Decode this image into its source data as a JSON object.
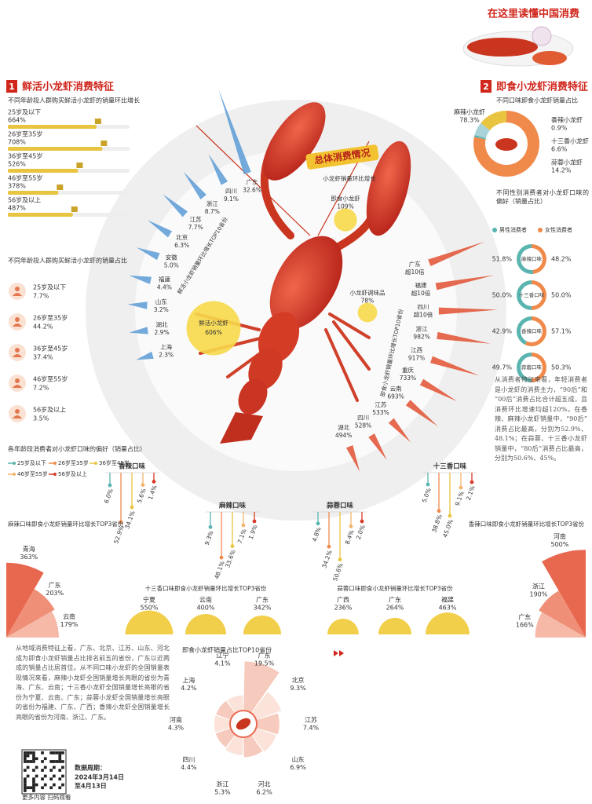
{
  "header": {
    "title": "在这里读懂中国消费"
  },
  "section1": {
    "number": "1",
    "title": "鲜活小龙虾消费特征"
  },
  "section2": {
    "number": "2",
    "title": "即食小龙虾消费特征"
  },
  "age_growth": {
    "title": "不同年龄段人群购买鲜活小龙虾的销量环比增长",
    "categories": [
      "25岁及以下",
      "26岁至35岁",
      "36岁至45岁",
      "46岁至55岁",
      "56岁及以上"
    ],
    "values": [
      664,
      708,
      526,
      378,
      487
    ],
    "value_labels": [
      "664%",
      "708%",
      "526%",
      "378%",
      "487%"
    ]
  },
  "age_share": {
    "title": "不同年龄段人群购买鲜活小龙虾的销量占比",
    "categories": [
      "25岁及以下",
      "26岁至35岁",
      "36岁至45岁",
      "46岁至55岁",
      "56岁及以上"
    ],
    "values": [
      7.7,
      44.2,
      37.4,
      7.2,
      3.5
    ],
    "value_labels": [
      "7.7%",
      "44.2%",
      "37.4%",
      "7.2%",
      "3.5%"
    ]
  },
  "overall": {
    "title": "总体消费情况",
    "subtitle": "小龙虾销量环比增长",
    "categories": [
      "即食小龙虾",
      "鲜活小龙虾",
      "小龙虾调味品"
    ],
    "values": [
      109,
      606,
      78
    ],
    "value_labels": [
      "109%",
      "606%",
      "78%"
    ]
  },
  "fresh_top10": {
    "title": "鲜活小龙虾销量环比增长TOP10省份",
    "categories": [
      "广东",
      "四川",
      "浙江",
      "江苏",
      "北京",
      "安徽",
      "福建",
      "山东",
      "湖北",
      "上海"
    ],
    "values": [
      32.6,
      9.1,
      8.7,
      7.7,
      6.3,
      5.0,
      4.4,
      3.2,
      2.9,
      2.3
    ],
    "value_labels": [
      "32.6%",
      "9.1%",
      "8.7%",
      "7.7%",
      "6.3%",
      "5.0%",
      "4.4%",
      "3.2%",
      "2.9%",
      "2.3%"
    ]
  },
  "instant_top10": {
    "title": "即食小龙虾销量环比增长TOP10省份",
    "categories": [
      "广东",
      "福建",
      "四川",
      "浙江",
      "江西",
      "重庆",
      "云南",
      "江苏",
      "四川",
      "湖北"
    ],
    "values": [
      null,
      null,
      null,
      982,
      917,
      733,
      693,
      533,
      528,
      494
    ],
    "value_labels": [
      "超10倍",
      "超10倍",
      "超10倍",
      "982%",
      "917%",
      "733%",
      "693%",
      "533%",
      "528%",
      "494%"
    ]
  },
  "flavor_age": {
    "title": "各年龄段消费者对小龙虾口味的偏好（销量占比）",
    "series": [
      {
        "name": "25岁及以下",
        "color": "#5ab4b0"
      },
      {
        "name": "26岁至35岁",
        "color": "#f08a4b"
      },
      {
        "name": "36岁至45岁",
        "color": "#e8c440"
      },
      {
        "name": "46岁至55岁",
        "color": "#f2b36b"
      },
      {
        "name": "56岁及以上",
        "color": "#d83a2a"
      }
    ],
    "groups": [
      {
        "name": "香辣口味",
        "values": [
          6.0,
          52.9,
          34.1,
          5.6,
          1.4
        ],
        "value_labels": [
          "6.0%",
          "52.9%",
          "34.1%",
          "5.6%",
          "1.4%"
        ]
      },
      {
        "name": "麻辣口味",
        "values": [
          9.3,
          48.1,
          33.6,
          7.1,
          1.9
        ],
        "value_labels": [
          "9.3%",
          "48.1%",
          "33.6%",
          "7.1%",
          "1.9%"
        ]
      },
      {
        "name": "蒜蓉口味",
        "values": [
          4.8,
          34.2,
          50.6,
          8.4,
          2.0
        ],
        "value_labels": [
          "4.8%",
          "34.2%",
          "50.6%",
          "8.4%",
          "2.0%"
        ]
      },
      {
        "name": "十三香口味",
        "values": [
          5.0,
          38.8,
          45.0,
          9.1,
          2.1
        ],
        "value_labels": [
          "5.0%",
          "38.8%",
          "45.0%",
          "9.1%",
          "2.1%"
        ]
      }
    ]
  },
  "instant_flavor_share": {
    "title": "不同口味即食小龙虾销量占比",
    "categories": [
      "麻辣小龙虾",
      "香辣小龙虾",
      "十三香小龙虾",
      "蒜蓉小龙虾"
    ],
    "values": [
      78.3,
      0.9,
      6.6,
      14.2
    ],
    "value_labels": [
      "78.3%",
      "0.9%",
      "6.6%",
      "14.2%"
    ],
    "colors": [
      "#f08a4b",
      "#5ab4b0",
      "#a9d3d8",
      "#e8c440"
    ]
  },
  "gender": {
    "title": "不同性别消费者对小龙虾口味的偏好（销量占比）",
    "categories": [
      "麻辣口味",
      "十三香口味",
      "香辣口味",
      "蒜蓉口味"
    ],
    "series": [
      {
        "name": "男性消费者",
        "color": "#5ab4b0",
        "values": [
          51.8,
          50.0,
          42.9,
          49.7
        ],
        "value_labels": [
          "51.8%",
          "50.0%",
          "42.9%",
          "49.7%"
        ]
      },
      {
        "name": "女性消费者",
        "color": "#f08a4b",
        "values": [
          48.2,
          50.0,
          57.1,
          50.3
        ],
        "value_labels": [
          "48.2%",
          "50.0%",
          "57.1%",
          "50.3%"
        ]
      }
    ]
  },
  "consumer_note": "从消费者特征来看，年轻消费者是小龙虾的消费主力，“90后”和“00后”消费占比合计超五成，且消费环比增速均超120%。在香辣、麻辣小龙虾销量中，“90后”消费占比最高，分别为52.9%、48.1%；在蒜蓉、十三香小龙虾销量中，“80后”消费占比最高，分别为50.6%、45%。",
  "region_note": "从地域消费特征上看，广东、北京、江苏、山东、河北成为即食小龙虾销量占比排名前五的省份，广东以近两成的销量占比居首位。从不同口味小龙虾的全国销量表现情况来看，麻辣小龙虾全国销量增长亮眼的省份为青海、广东、云南；十三香小龙虾全国销量增长亮眼的省份为宁夏、云南、广东；蒜蓉小龙虾全国销量增长亮眼的省份为福建、广东、广西；香辣小龙虾全国销量增长亮眼的省份为河南、浙江、广东。",
  "mala_top3": {
    "title": "麻辣口味即食小龙虾销量环比增长TOP3省份",
    "categories": [
      "青海",
      "广东",
      "云南"
    ],
    "values": [
      363,
      203,
      179
    ],
    "value_labels": [
      "363%",
      "203%",
      "179%"
    ]
  },
  "shisanxiang_top3": {
    "title": "十三香口味即食小龙虾销量环比增长TOP3省份",
    "categories": [
      "宁夏",
      "云南",
      "广东"
    ],
    "values": [
      550,
      400,
      342
    ],
    "value_labels": [
      "550%",
      "400%",
      "342%"
    ]
  },
  "suanrong_top3": {
    "title": "蒜蓉口味即食小龙虾销量环比增长TOP3省份",
    "categories": [
      "广西",
      "广东",
      "福建"
    ],
    "values": [
      236,
      264,
      463
    ],
    "value_labels": [
      "236%",
      "264%",
      "463%"
    ]
  },
  "xiangla_top3": {
    "title": "香辣口味即食小龙虾销量环比增长TOP3省份",
    "categories": [
      "河南",
      "浙江",
      "广东"
    ],
    "values": [
      500,
      190,
      166
    ],
    "value_labels": [
      "500%",
      "190%",
      "166%"
    ]
  },
  "instant_top10_share": {
    "title": "即食小龙虾销量占比TOP10省份",
    "categories": [
      "广东",
      "北京",
      "江苏",
      "山东",
      "河北",
      "浙江",
      "四川",
      "河南",
      "上海",
      "辽宁"
    ],
    "values": [
      19.5,
      9.3,
      7.4,
      6.9,
      6.2,
      5.3,
      4.4,
      4.3,
      4.2,
      4.1
    ],
    "value_labels": [
      "19.5%",
      "9.3%",
      "7.4%",
      "6.9%",
      "6.2%",
      "5.3%",
      "4.4%",
      "4.3%",
      "4.2%",
      "4.1%"
    ]
  },
  "footer": {
    "qr_caption": "更多内容 扫码观看",
    "period_label": "数据周期：",
    "period": [
      "2024年3月14日",
      "至4月13日"
    ]
  }
}
